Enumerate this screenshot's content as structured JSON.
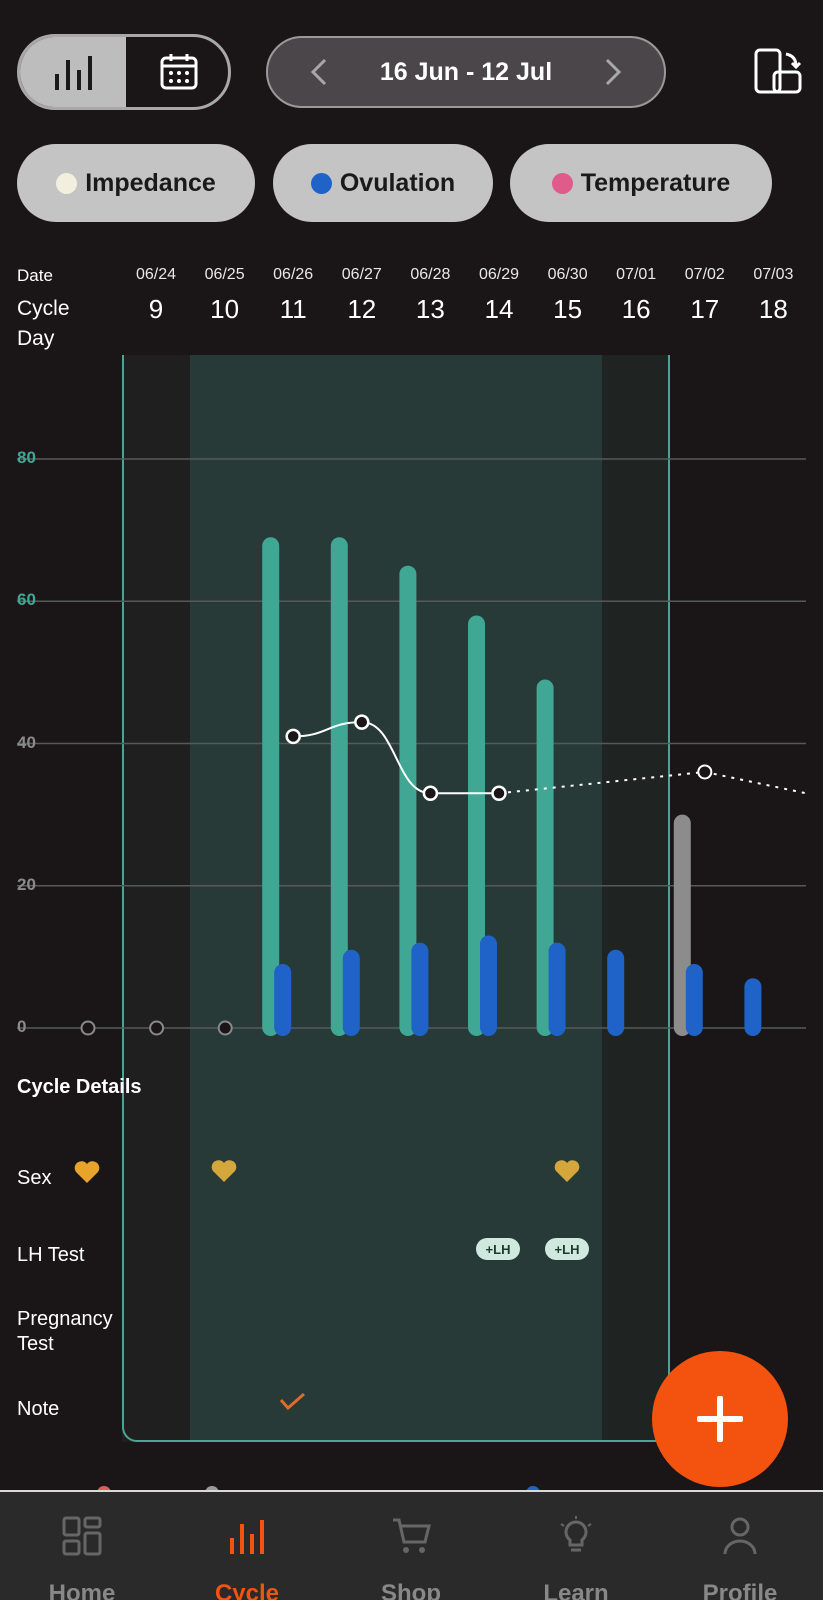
{
  "header": {
    "date_range": "16 Jun - 12 Jul"
  },
  "legend": [
    {
      "label": "Impedance",
      "color": "#f3efdf"
    },
    {
      "label": "Ovulation",
      "color": "#1f63c8"
    },
    {
      "label": "Temperature",
      "color": "#e05a8a"
    }
  ],
  "table_header": {
    "date_label": "Date",
    "cycle_day_label": "Cycle\nDay",
    "dates": [
      "06/24",
      "06/25",
      "06/26",
      "06/27",
      "06/28",
      "06/29",
      "06/30",
      "07/01",
      "07/02",
      "07/03"
    ],
    "cycle_days": [
      "9",
      "10",
      "11",
      "12",
      "13",
      "14",
      "15",
      "16",
      "17",
      "18"
    ]
  },
  "chart_data": {
    "type": "bar",
    "categories": [
      "9",
      "10",
      "11",
      "12",
      "13",
      "14",
      "15",
      "16",
      "17",
      "18"
    ],
    "ylim": [
      0,
      80
    ],
    "ytick_labels": [
      "80",
      "60",
      "40",
      "20",
      "0"
    ],
    "yticks": [
      80,
      60,
      40,
      20,
      0
    ],
    "grid": true,
    "series": [
      {
        "values": [
          0,
          0,
          69,
          69,
          65,
          58,
          49,
          null,
          30,
          null
        ],
        "color": "#3fa793",
        "kind": "bar"
      },
      {
        "values": [
          null,
          null,
          9,
          11,
          12,
          13,
          12,
          11,
          9,
          7
        ],
        "color": "#1f63c8",
        "kind": "bar"
      },
      {
        "values": [
          0,
          0,
          0,
          41,
          43,
          33,
          33,
          39,
          null,
          36
        ],
        "color": "#ffffff",
        "kind": "line"
      }
    ],
    "gray_bar_day": "17",
    "forecast_after_day": "15"
  },
  "cycle_details": {
    "title": "Cycle Details",
    "rows": {
      "sex": "Sex",
      "lh_test": "LH Test",
      "pregnancy_test": "Pregnancy\nTest",
      "note": "Note"
    },
    "lh_badge_text": "+LH"
  },
  "nav": {
    "items": [
      {
        "label": "Home"
      },
      {
        "label": "Cycle"
      },
      {
        "label": "Shop"
      },
      {
        "label": "Learn"
      },
      {
        "label": "Profile"
      }
    ],
    "active": "Cycle"
  },
  "colors": {
    "accent": "#f4520f",
    "teal": "#3fa793",
    "fertile_window": "#273a37",
    "gold": "#d4a73c"
  }
}
